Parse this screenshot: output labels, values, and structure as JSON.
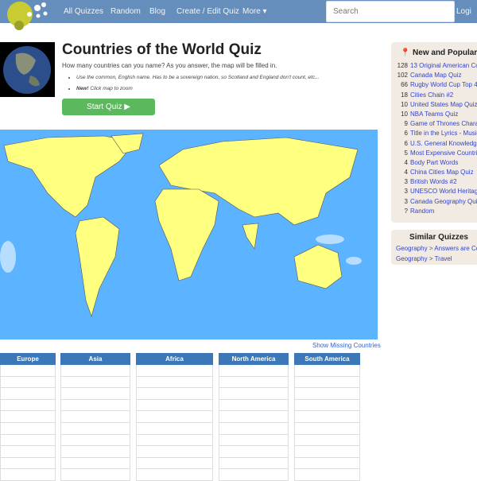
{
  "nav": {
    "items": [
      "All Quizzes",
      "Random",
      "Blog",
      "Create / Edit Quiz",
      "More ▾"
    ],
    "search_placeholder": "Search",
    "login": "Logi"
  },
  "quiz": {
    "title": "Countries of the World Quiz",
    "description": "How many countries can you name? As you answer, the map will be filled in.",
    "notes": [
      "Use the common, English name. Has to be a sovereign nation, so Scotland and England don't count, etc..."
    ],
    "new_label": "New!",
    "new_text": " Click map to zoom",
    "start_label": "Start Quiz ▶",
    "show_missing": "Show Missing Countries"
  },
  "columns": [
    "Europe",
    "Asia",
    "Africa",
    "North America",
    "South America"
  ],
  "popular": {
    "title": "New and Popular",
    "items": [
      {
        "n": "128",
        "t": "13 Original American Col"
      },
      {
        "n": "102",
        "t": "Canada Map Quiz"
      },
      {
        "n": "66",
        "t": "Rugby World Cup Top 4 F"
      },
      {
        "n": "18",
        "t": "Cities Chain #2"
      },
      {
        "n": "10",
        "t": "United States Map Quiz"
      },
      {
        "n": "10",
        "t": "NBA Teams Quiz"
      },
      {
        "n": "9",
        "t": "Game of Thrones Charac"
      },
      {
        "n": "6",
        "t": "Title in the Lyrics - Music"
      },
      {
        "n": "6",
        "t": "U.S. General Knowledge"
      },
      {
        "n": "5",
        "t": "Most Expensive Countrie"
      },
      {
        "n": "4",
        "t": "Body Part Words"
      },
      {
        "n": "4",
        "t": "China Cities Map Quiz"
      },
      {
        "n": "3",
        "t": "British Words #2"
      },
      {
        "n": "3",
        "t": "UNESCO World Heritage"
      },
      {
        "n": "3",
        "t": "Canada Geography Quiz"
      },
      {
        "n": "?",
        "t": "Random"
      }
    ]
  },
  "similar": {
    "title": "Similar Quizzes",
    "items": [
      {
        "a": "Geography",
        "b": "Answers are Cou"
      },
      {
        "a": "Geography",
        "b": "Travel"
      }
    ]
  },
  "colors": {
    "nav": "#658ebc",
    "land": "#ffff80",
    "sea": "#5cb3ff",
    "header": "#3c78b8",
    "button": "#5cb85c"
  }
}
